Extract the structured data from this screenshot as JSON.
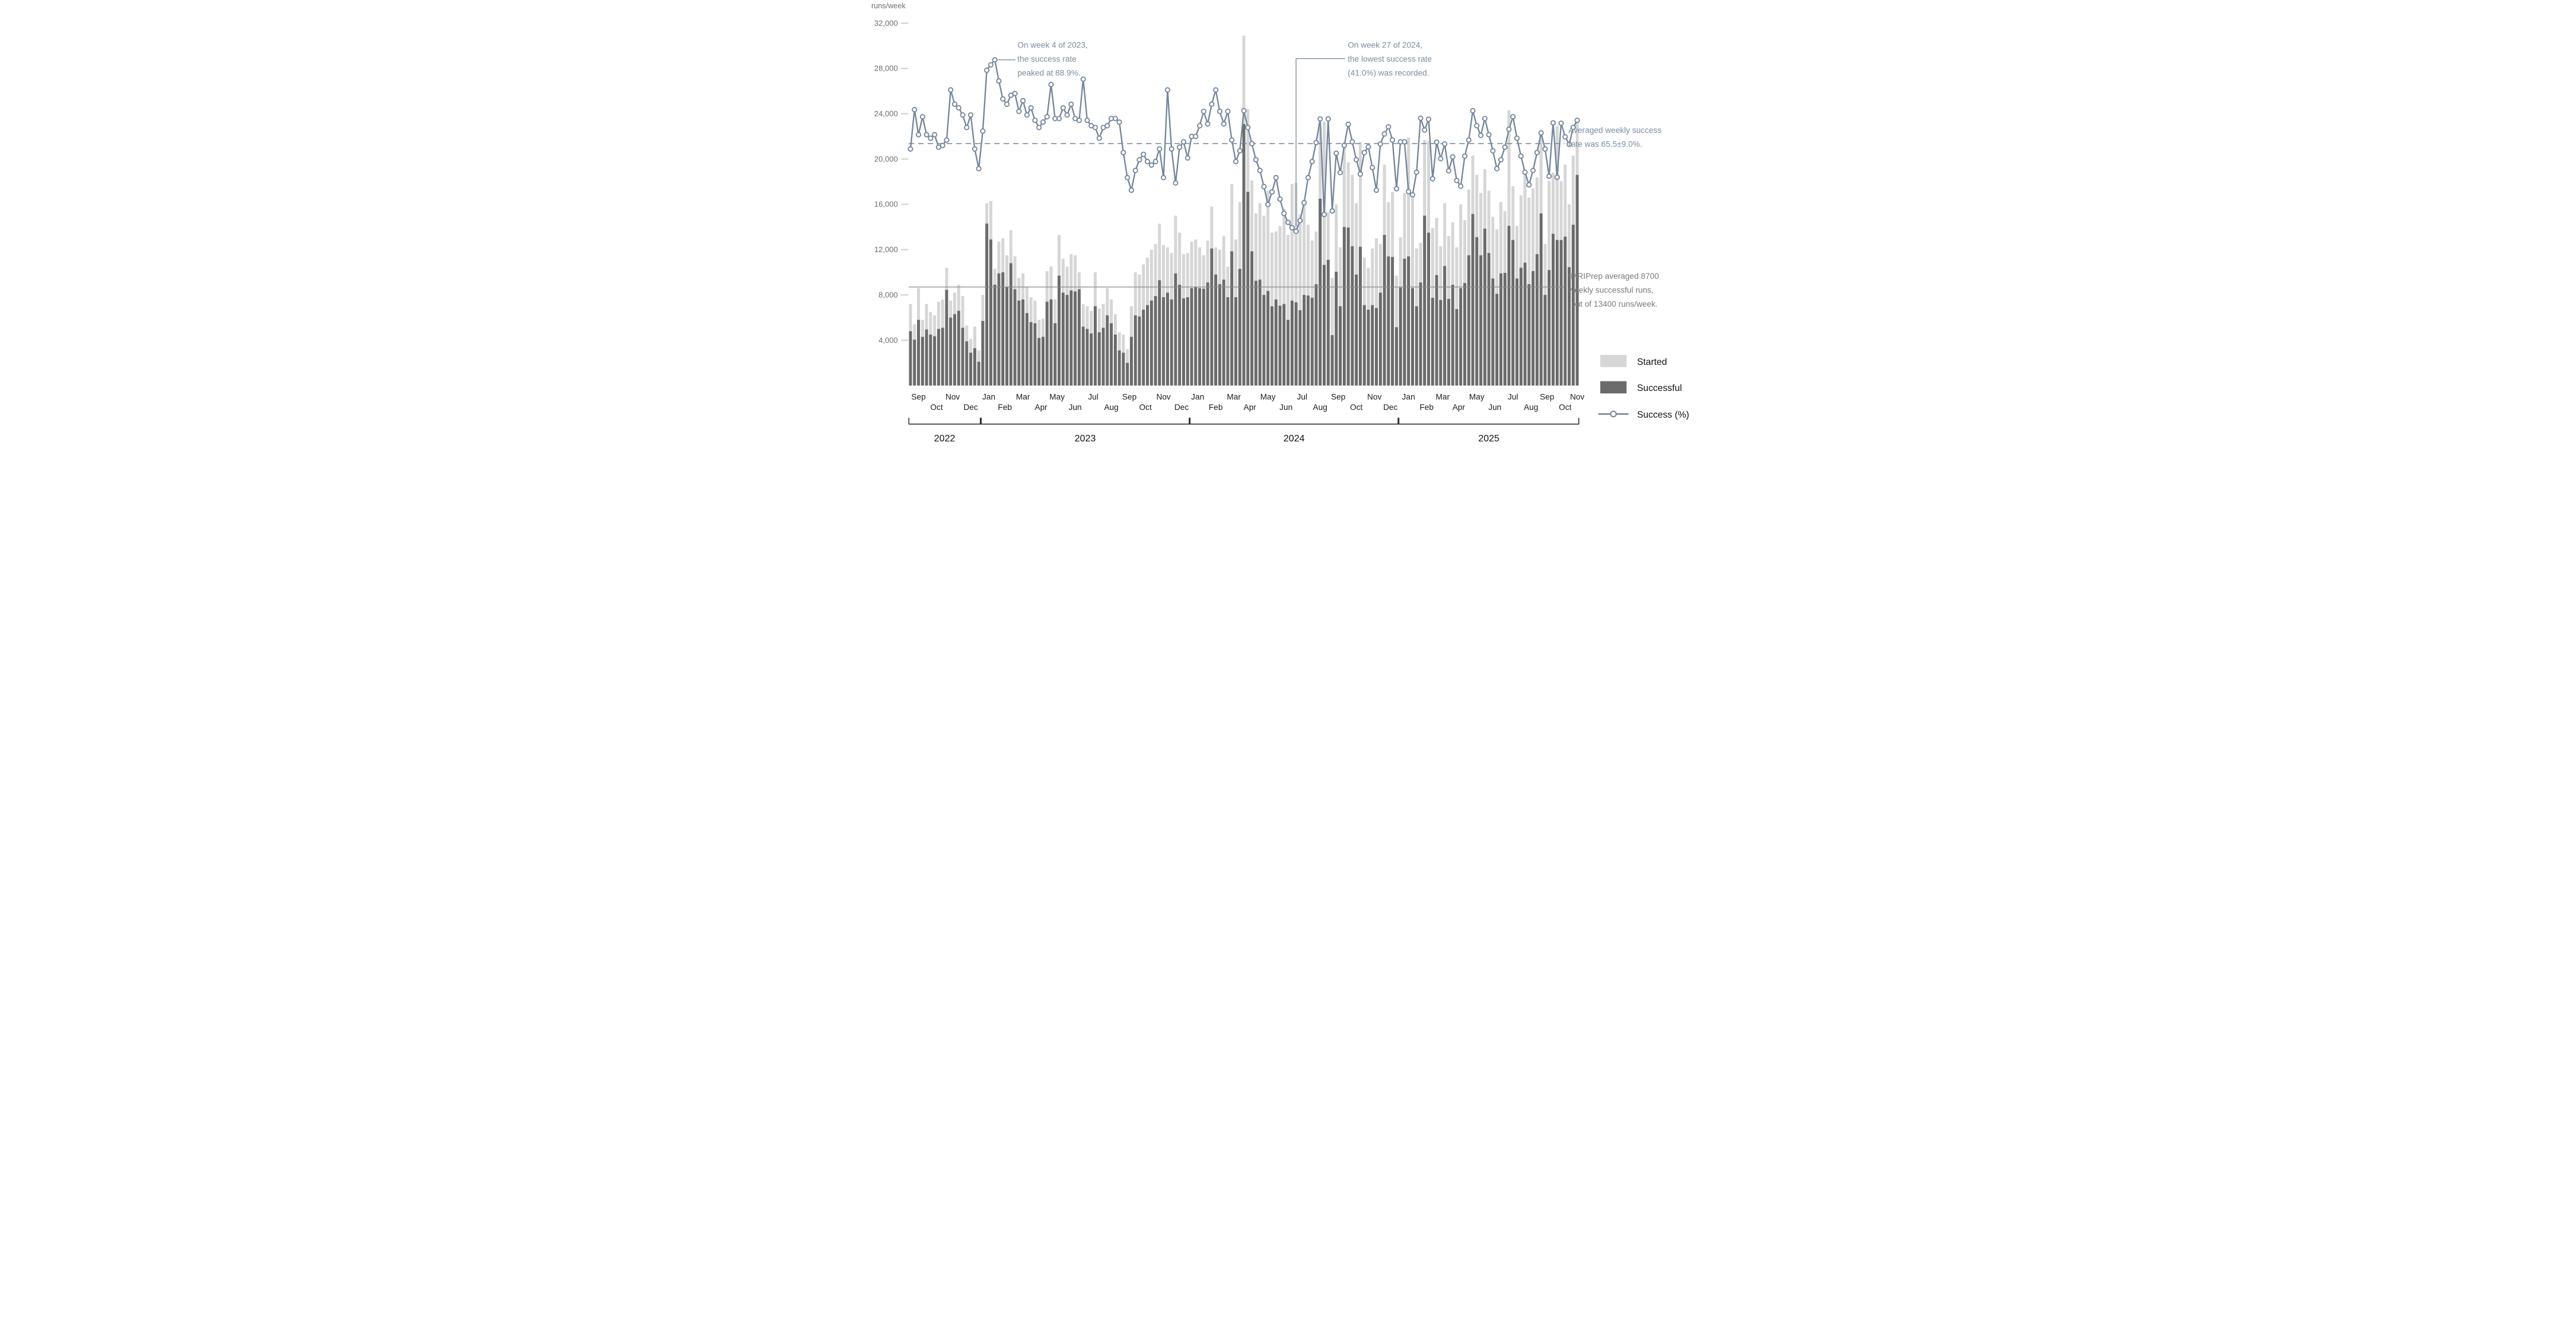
{
  "colors": {
    "started_bar": "#d6d6d6",
    "successful_bar": "#6b6b6b",
    "success_line": "#75869b",
    "annotation_slate": "#7b8ca1",
    "annotation_gray": "#7a7a7a",
    "axis_label": "#6e6e6e",
    "tick_dash": "#cfcfcf",
    "month_label": "#1c1c1c",
    "year_label": "#111111",
    "avg_runs_line": "#8a8a8a"
  },
  "chart_data": {
    "type": "bar",
    "title": "",
    "ylabel": "runs/week",
    "xlabel": "",
    "ylim": [
      0,
      33000
    ],
    "grid": false,
    "legend_position": "lower right",
    "start_week": "2022-08-29",
    "weeks": 167,
    "y_ticks": [
      4000,
      8000,
      12000,
      16000,
      20000,
      24000,
      28000,
      32000
    ],
    "y_tick_labels": [
      "4,000",
      "8,000",
      "12,000",
      "16,000",
      "20,000",
      "24,000",
      "28,000",
      "32,000"
    ],
    "series": [
      {
        "name": "Started",
        "values": [
          7200,
          5400,
          8600,
          5800,
          7200,
          6500,
          6200,
          7400,
          7600,
          10400,
          7500,
          8200,
          8900,
          7900,
          5300,
          4100,
          5200,
          3100,
          8000,
          16100,
          16300,
          10300,
          12700,
          13000,
          11500,
          13700,
          11400,
          9500,
          9900,
          8700,
          7800,
          7500,
          5800,
          5900,
          10100,
          10500,
          7600,
          13300,
          11200,
          10500,
          11600,
          11500,
          10000,
          7200,
          7000,
          6600,
          10000,
          6800,
          7200,
          8600,
          7600,
          6300,
          4700,
          4500,
          3200,
          7000,
          10000,
          9800,
          10700,
          11300,
          12000,
          12500,
          14300,
          12400,
          12200,
          11700,
          15000,
          13500,
          11600,
          11700,
          12700,
          12900,
          12200,
          11500,
          12800,
          15800,
          12200,
          12000,
          13200,
          10500,
          17800,
          12900,
          16200,
          30900,
          24400,
          18100,
          15200,
          16100,
          15000,
          17200,
          13500,
          13600,
          14100,
          15600,
          13300,
          17800,
          17900,
          15100,
          16300,
          14200,
          12800,
          13600,
          22800,
          23300,
          15300,
          9500,
          16000,
          12200,
          21500,
          19700,
          18600,
          16100,
          21500,
          11300,
          10400,
          12100,
          13000,
          12500,
          19500,
          16200,
          17100,
          9700,
          13100,
          17000,
          21900,
          16800,
          12100,
          12600,
          21700,
          21600,
          13900,
          14800,
          12300,
          16100,
          13200,
          14400,
          12200,
          16000,
          14600,
          17300,
          20300,
          18600,
          17000,
          19100,
          17200,
          14900,
          13800,
          16200,
          15400,
          24300,
          17600,
          14100,
          16800,
          18900,
          16600,
          17400,
          18400,
          22200,
          12500,
          18100,
          18800,
          22900,
          18050,
          19500,
          16000,
          20300,
          23250
        ]
      },
      {
        "name": "Successful",
        "values": [
          4800,
          4050,
          5800,
          4300,
          4950,
          4500,
          4350,
          5000,
          5100,
          8450,
          6000,
          6300,
          6600,
          5100,
          3900,
          2900,
          3300,
          2100,
          5700,
          14300,
          12900,
          8900,
          9900,
          10000,
          8700,
          10800,
          8500,
          7500,
          7600,
          6400,
          5600,
          5500,
          4200,
          4300,
          7400,
          7600,
          5500,
          9700,
          8200,
          8000,
          8400,
          8300,
          8500,
          5200,
          5000,
          4600,
          7000,
          4700,
          5100,
          6200,
          5500,
          4500,
          3100,
          2900,
          2000,
          4300,
          6200,
          6100,
          6700,
          7100,
          7500,
          7900,
          9300,
          7800,
          8200,
          7600,
          9900,
          8900,
          7700,
          7800,
          8600,
          8700,
          8600,
          8550,
          9100,
          12100,
          9800,
          8950,
          9350,
          7800,
          11850,
          7800,
          10300,
          23100,
          17100,
          11850,
          9250,
          9350,
          8000,
          8350,
          7000,
          7600,
          7050,
          7200,
          5800,
          7500,
          7350,
          6650,
          8000,
          7950,
          7750,
          8950,
          16500,
          10650,
          11100,
          4450,
          10050,
          7000,
          14000,
          13950,
          12300,
          9800,
          12250,
          7100,
          6700,
          7100,
          6850,
          8200,
          13300,
          11400,
          11350,
          5150,
          8650,
          11200,
          11400,
          8600,
          7000,
          9100,
          15000,
          13500,
          7750,
          9750,
          7550,
          10550,
          7650,
          8900,
          6750,
          8600,
          9050,
          11500,
          15150,
          13100,
          11500,
          13850,
          11700,
          9450,
          8100,
          9900,
          9950,
          14100,
          12850,
          9450,
          10400,
          10850,
          8950,
          10100,
          11600,
          15200,
          8000,
          10200,
          13400,
          12850,
          12850,
          13150,
          10450,
          14200,
          18600
        ]
      },
      {
        "name": "Success (%)",
        "axis": "percent",
        "values": [
          64,
          75,
          68,
          73,
          68,
          67,
          68,
          64.5,
          65,
          66.5,
          80.5,
          76.5,
          75.5,
          73.5,
          70,
          73.5,
          64,
          58.5,
          69,
          86,
          87.5,
          88.9,
          83,
          78,
          76.5,
          79,
          79.5,
          74.5,
          77.5,
          73.5,
          75.5,
          72,
          70,
          71.5,
          73,
          82,
          72.5,
          72.5,
          75.5,
          73.5,
          76.5,
          72.5,
          72,
          83.5,
          72,
          70.5,
          70,
          67,
          70,
          70.5,
          72.5,
          72.5,
          71.5,
          63,
          56,
          52.5,
          58,
          61,
          62.5,
          60.5,
          59.5,
          60.5,
          64,
          56,
          80.5,
          64,
          54.5,
          64.5,
          66,
          61.5,
          67.5,
          67.5,
          70.5,
          74.5,
          71,
          76.5,
          80.5,
          74.5,
          71,
          74.5,
          66.5,
          60.5,
          63.5,
          74.7,
          70,
          65.5,
          61,
          58,
          53.5,
          48.5,
          52,
          56,
          50,
          46,
          43.5,
          42,
          41,
          44,
          49,
          56,
          60.5,
          65.8,
          72.4,
          45.7,
          72.4,
          46.7,
          62.8,
          57.4,
          65,
          70.9,
          66,
          61,
          57,
          63,
          64.6,
          58.8,
          52.5,
          65.4,
          68.2,
          70.2,
          66.5,
          52.9,
          66,
          66,
          52.1,
          51.2,
          57.5,
          72.6,
          69.3,
          72.3,
          55.7,
          65.9,
          61.3,
          65.4,
          57.9,
          61.8,
          55.2,
          53.6,
          62,
          66.5,
          74.7,
          70.5,
          67.8,
          72.5,
          68,
          63.5,
          58.5,
          61,
          64.5,
          69.5,
          73,
          67,
          62,
          57.5,
          54,
          58,
          63,
          68.5,
          64,
          56.4,
          71.3,
          56.1,
          71.2,
          67.4,
          65.3,
          70,
          72
        ]
      }
    ],
    "averages": {
      "success_rate_pct": 65.5,
      "success_rate_sd_pct": 9.0,
      "weekly_successful_runs": 8700,
      "weekly_started_runs": 13400
    },
    "annotations": [
      {
        "id": "peak",
        "week_index": 21,
        "value_pct": 88.9,
        "lines": [
          "On week 4 of 2023,",
          "the success rate",
          "peaked at 88.9%."
        ]
      },
      {
        "id": "lowest",
        "week_index": 96,
        "value_pct": 41.0,
        "lines": [
          "On week 27 of 2024,",
          "the lowest success rate",
          "(41.0%) was recorded."
        ]
      },
      {
        "id": "avg_rate",
        "lines": [
          "Averaged weekly success",
          "rate was 65.5±9.0%."
        ]
      },
      {
        "id": "avg_runs",
        "lines": [
          "fMRIPrep averaged 8700",
          "weekly successful runs,",
          "out of 13400 runs/week."
        ]
      }
    ],
    "legend": [
      {
        "label": "Started",
        "swatch": "started"
      },
      {
        "label": "Successful",
        "swatch": "successful"
      },
      {
        "label": "Success (%)",
        "swatch": "line"
      }
    ],
    "year_labels": [
      "2022",
      "2023",
      "2024",
      "2025"
    ],
    "month_short": [
      "Jan",
      "Feb",
      "Mar",
      "Apr",
      "May",
      "Jun",
      "Jul",
      "Aug",
      "Sep",
      "Oct",
      "Nov",
      "Dec"
    ]
  }
}
